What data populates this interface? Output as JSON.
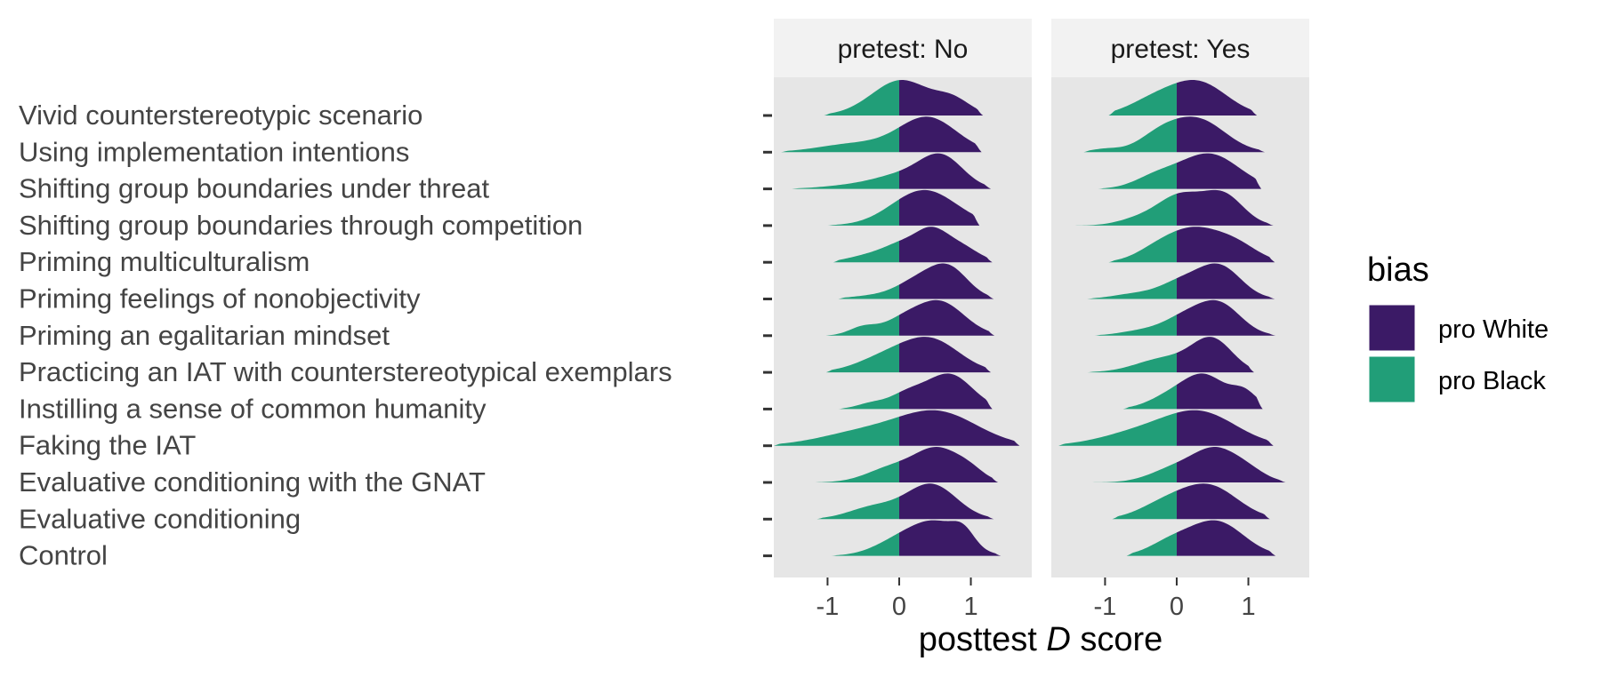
{
  "chart_data": {
    "type": "ridgeline",
    "xlabel_parts": [
      "posttest ",
      "D",
      " score"
    ],
    "ylabel": "",
    "xlim": [
      -1.75,
      1.85
    ],
    "x_ticks": [
      -1,
      0,
      1
    ],
    "grid": false,
    "legend": {
      "title": "bias",
      "placement": "right",
      "entries": [
        {
          "label": "pro White",
          "color": "#3b1a66"
        },
        {
          "label": "pro Black",
          "color": "#219e78"
        }
      ]
    },
    "categories": [
      "Vivid counterstereotypic scenario",
      "Using implementation intentions",
      "Shifting group boundaries under threat",
      "Shifting group boundaries through competition",
      "Priming multiculturalism",
      "Priming feelings of nonobjectivity",
      "Priming an egalitarian mindset",
      "Practicing an IAT with counterstereotypical exemplars",
      "Instilling a sense of common humanity",
      "Faking the IAT",
      "Evaluative conditioning with the GNAT",
      "Evaluative conditioning",
      "Control"
    ],
    "panels": [
      {
        "strip": "pretest: No",
        "densities": [
          {
            "min": -1.05,
            "max": 1.17,
            "peaks": [
              [
                -0.1,
                0.4,
                0.85
              ],
              [
                0.15,
                0.35,
                0.65
              ],
              [
                0.75,
                0.25,
                0.6
              ]
            ]
          },
          {
            "min": -1.65,
            "max": 1.15,
            "peaks": [
              [
                0.4,
                0.4,
                1.0
              ],
              [
                -0.6,
                0.5,
                0.25
              ]
            ]
          },
          {
            "min": -1.5,
            "max": 1.28,
            "peaks": [
              [
                0.6,
                0.3,
                1.0
              ],
              [
                0.05,
                0.4,
                0.45
              ],
              [
                -0.7,
                0.4,
                0.1
              ]
            ]
          },
          {
            "min": -1.0,
            "max": 1.12,
            "peaks": [
              [
                0.35,
                0.45,
                0.95
              ]
            ]
          },
          {
            "min": -0.92,
            "max": 1.3,
            "peaks": [
              [
                0.45,
                0.22,
                0.95
              ],
              [
                0.05,
                0.25,
                0.55
              ],
              [
                0.85,
                0.25,
                0.55
              ],
              [
                -0.4,
                0.3,
                0.25
              ]
            ]
          },
          {
            "min": -0.85,
            "max": 1.32,
            "peaks": [
              [
                0.7,
                0.27,
                1.0
              ],
              [
                0.25,
                0.3,
                0.6
              ],
              [
                -0.4,
                0.3,
                0.1
              ]
            ]
          },
          {
            "min": -1.05,
            "max": 1.33,
            "peaks": [
              [
                0.55,
                0.35,
                1.0
              ],
              [
                -0.5,
                0.2,
                0.25
              ],
              [
                0.0,
                0.25,
                0.3
              ]
            ]
          },
          {
            "min": -1.02,
            "max": 1.28,
            "peaks": [
              [
                0.45,
                0.4,
                0.9
              ],
              [
                -0.2,
                0.4,
                0.4
              ]
            ]
          },
          {
            "min": -0.85,
            "max": 1.3,
            "peaks": [
              [
                0.7,
                0.32,
                1.0
              ],
              [
                0.1,
                0.25,
                0.4
              ],
              [
                -0.4,
                0.2,
                0.15
              ]
            ]
          },
          {
            "min": -1.75,
            "max": 1.68,
            "peaks": [
              [
                0.55,
                0.55,
                0.6
              ],
              [
                -0.5,
                0.6,
                0.25
              ]
            ]
          },
          {
            "min": -1.2,
            "max": 1.38,
            "peaks": [
              [
                0.55,
                0.32,
                1.0
              ],
              [
                -0.1,
                0.35,
                0.45
              ],
              [
                1.0,
                0.2,
                0.25
              ]
            ]
          },
          {
            "min": -1.15,
            "max": 1.32,
            "peaks": [
              [
                0.45,
                0.35,
                1.0
              ],
              [
                -0.35,
                0.35,
                0.35
              ]
            ]
          },
          {
            "min": -0.95,
            "max": 1.42,
            "peaks": [
              [
                0.55,
                0.35,
                0.95
              ],
              [
                0.9,
                0.15,
                0.4
              ],
              [
                0.0,
                0.35,
                0.45
              ]
            ]
          }
        ]
      },
      {
        "strip": "pretest: Yes",
        "densities": [
          {
            "min": -0.95,
            "max": 1.12,
            "peaks": [
              [
                0.3,
                0.4,
                1.0
              ],
              [
                -0.35,
                0.35,
                0.4
              ]
            ]
          },
          {
            "min": -1.3,
            "max": 1.23,
            "peaks": [
              [
                0.3,
                0.38,
                1.0
              ],
              [
                -0.25,
                0.3,
                0.45
              ],
              [
                -1.0,
                0.2,
                0.1
              ]
            ]
          },
          {
            "min": -1.1,
            "max": 1.18,
            "peaks": [
              [
                0.45,
                0.42,
                1.0
              ],
              [
                -0.3,
                0.3,
                0.3
              ]
            ]
          },
          {
            "min": -1.55,
            "max": 1.35,
            "peaks": [
              [
                0.65,
                0.28,
                0.85
              ],
              [
                0.05,
                0.3,
                0.8
              ],
              [
                -0.5,
                0.3,
                0.2
              ]
            ]
          },
          {
            "min": -0.95,
            "max": 1.37,
            "peaks": [
              [
                0.25,
                0.38,
                1.0
              ],
              [
                0.85,
                0.3,
                0.45
              ],
              [
                -0.3,
                0.3,
                0.3
              ]
            ]
          },
          {
            "min": -1.25,
            "max": 1.37,
            "peaks": [
              [
                0.6,
                0.3,
                1.0
              ],
              [
                0.05,
                0.3,
                0.5
              ],
              [
                -0.6,
                0.3,
                0.15
              ]
            ]
          },
          {
            "min": -1.15,
            "max": 1.38,
            "peaks": [
              [
                0.6,
                0.3,
                1.0
              ],
              [
                0.1,
                0.3,
                0.55
              ],
              [
                -0.5,
                0.3,
                0.15
              ]
            ]
          },
          {
            "min": -1.25,
            "max": 1.08,
            "peaks": [
              [
                0.5,
                0.28,
                1.0
              ],
              [
                -0.15,
                0.4,
                0.45
              ]
            ]
          },
          {
            "min": -0.75,
            "max": 1.2,
            "peaks": [
              [
                0.4,
                0.3,
                0.95
              ],
              [
                0.95,
                0.18,
                0.45
              ],
              [
                -0.1,
                0.3,
                0.35
              ]
            ]
          },
          {
            "min": -1.65,
            "max": 1.35,
            "peaks": [
              [
                0.35,
                0.5,
                0.7
              ],
              [
                -0.5,
                0.55,
                0.3
              ]
            ]
          },
          {
            "min": -1.3,
            "max": 1.52,
            "peaks": [
              [
                0.55,
                0.3,
                1.0
              ],
              [
                0.0,
                0.35,
                0.5
              ],
              [
                1.0,
                0.25,
                0.35
              ]
            ]
          },
          {
            "min": -0.9,
            "max": 1.3,
            "peaks": [
              [
                0.45,
                0.4,
                1.0
              ],
              [
                -0.2,
                0.35,
                0.4
              ]
            ]
          },
          {
            "min": -0.7,
            "max": 1.38,
            "peaks": [
              [
                0.55,
                0.38,
                1.0
              ],
              [
                -0.1,
                0.3,
                0.35
              ]
            ]
          }
        ]
      }
    ]
  }
}
